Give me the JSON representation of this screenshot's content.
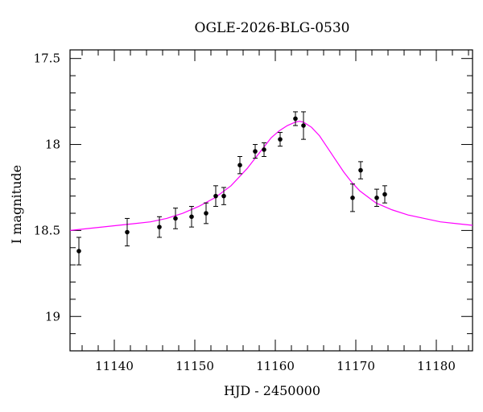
{
  "chart_data": {
    "type": "scatter",
    "title": "OGLE-2026-BLG-0530",
    "xlabel": "HJD - 2450000",
    "ylabel": "I magnitude",
    "xlim": [
      11134.5,
      11184.5
    ],
    "ylim": [
      19.2,
      17.45
    ],
    "y_inverted": true,
    "grid": false,
    "legend": "none",
    "x_ticks": [
      11140,
      11150,
      11160,
      11170,
      11180
    ],
    "y_ticks": [
      17.5,
      18,
      18.5,
      19
    ],
    "x_tick_labels": [
      "11140",
      "11150",
      "11160",
      "11170",
      "11180"
    ],
    "y_tick_labels": [
      "17.5",
      "18",
      "18.5",
      "19"
    ],
    "x_minor_step": 2,
    "y_minor_step": 0.1,
    "series": [
      {
        "type": "scatter",
        "color": "#000000",
        "points": [
          {
            "x": 11135.6,
            "y": 18.62,
            "err": 0.08
          },
          {
            "x": 11141.6,
            "y": 18.51,
            "err": 0.08
          },
          {
            "x": 11145.6,
            "y": 18.48,
            "err": 0.06
          },
          {
            "x": 11147.6,
            "y": 18.43,
            "err": 0.06
          },
          {
            "x": 11149.6,
            "y": 18.42,
            "err": 0.06
          },
          {
            "x": 11151.4,
            "y": 18.4,
            "err": 0.06
          },
          {
            "x": 11152.6,
            "y": 18.3,
            "err": 0.06
          },
          {
            "x": 11153.6,
            "y": 18.3,
            "err": 0.05
          },
          {
            "x": 11155.6,
            "y": 18.12,
            "err": 0.05
          },
          {
            "x": 11157.5,
            "y": 18.04,
            "err": 0.04
          },
          {
            "x": 11158.6,
            "y": 18.03,
            "err": 0.04
          },
          {
            "x": 11160.6,
            "y": 17.97,
            "err": 0.04
          },
          {
            "x": 11162.5,
            "y": 17.85,
            "err": 0.04
          },
          {
            "x": 11163.5,
            "y": 17.89,
            "err": 0.08
          },
          {
            "x": 11169.6,
            "y": 18.31,
            "err": 0.08
          },
          {
            "x": 11170.6,
            "y": 18.15,
            "err": 0.05
          },
          {
            "x": 11172.6,
            "y": 18.31,
            "err": 0.05
          },
          {
            "x": 11173.6,
            "y": 18.29,
            "err": 0.05
          }
        ]
      },
      {
        "type": "line",
        "color": "#ff00ff",
        "x": [
          11134.5,
          11136.5,
          11138.5,
          11140.5,
          11142.5,
          11144.5,
          11146.5,
          11148.5,
          11150.5,
          11152.5,
          11154.5,
          11156.5,
          11157.5,
          11158.5,
          11159.5,
          11160.5,
          11161.5,
          11162.5,
          11163.0,
          11163.5,
          11164.5,
          11165.5,
          11166.5,
          11167.5,
          11168.5,
          11169.5,
          11170.5,
          11172.5,
          11174.5,
          11176.5,
          11178.5,
          11180.5,
          11182.5,
          11184.5
        ],
        "y": [
          18.5,
          18.49,
          18.48,
          18.47,
          18.46,
          18.45,
          18.43,
          18.4,
          18.36,
          18.31,
          18.24,
          18.14,
          18.08,
          18.02,
          17.96,
          17.92,
          17.89,
          17.87,
          17.865,
          17.87,
          17.9,
          17.95,
          18.02,
          18.09,
          18.16,
          18.22,
          18.27,
          18.34,
          18.38,
          18.41,
          18.43,
          18.45,
          18.46,
          18.47
        ]
      }
    ]
  }
}
